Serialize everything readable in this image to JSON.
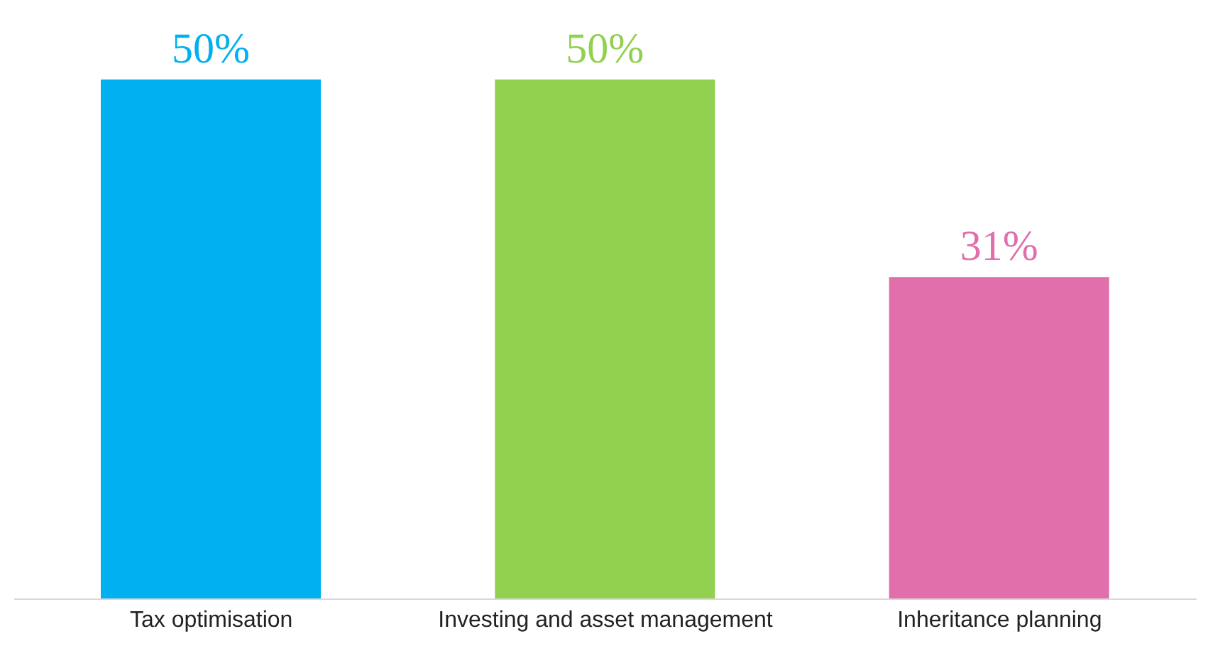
{
  "chart_data": {
    "type": "bar",
    "categories": [
      "Tax optimisation",
      "Investing and asset management",
      "Inheritance planning"
    ],
    "values": [
      50,
      50,
      31
    ],
    "colors": [
      "#00b0f0",
      "#92d050",
      "#e06fac"
    ],
    "value_labels": [
      "50%",
      "50%",
      "31%"
    ],
    "grid": false
  }
}
